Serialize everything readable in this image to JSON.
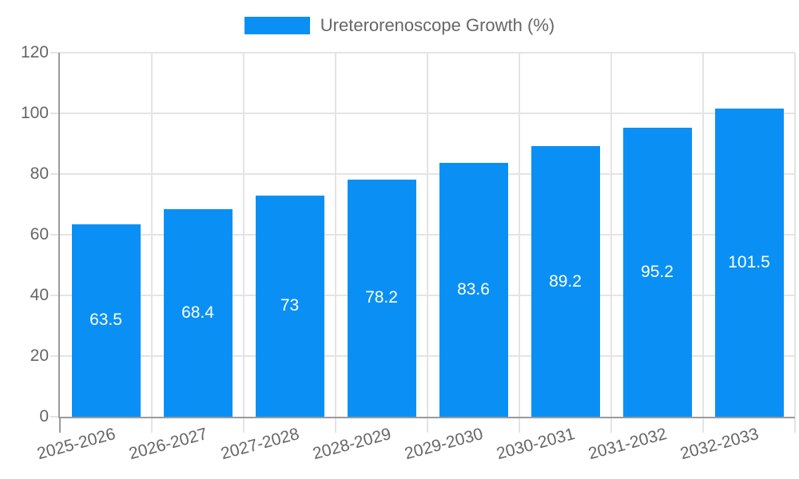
{
  "chart_data": {
    "type": "bar",
    "title": "",
    "categories": [
      "2025-2026",
      "2026-2027",
      "2027-2028",
      "2028-2029",
      "2029-2030",
      "2030-2031",
      "2031-2032",
      "2032-2033"
    ],
    "values": [
      63.5,
      68.4,
      73,
      78.2,
      83.6,
      89.2,
      95.2,
      101.5
    ],
    "legend": {
      "entries": [
        "Ureterorenoscope Growth (%)"
      ],
      "position": "top"
    },
    "xlabel": "",
    "ylabel": "",
    "ylim": [
      0,
      120
    ],
    "yticks": [
      0,
      20,
      40,
      60,
      80,
      100,
      120
    ],
    "grid": true,
    "bar_color": "#0a90f5",
    "value_label_color": "#ffffff",
    "tick_text_color": "#666666",
    "grid_color": "#e4e4e4",
    "axis_color": "#9a9a9a",
    "x_label_rotation_deg": -15
  }
}
